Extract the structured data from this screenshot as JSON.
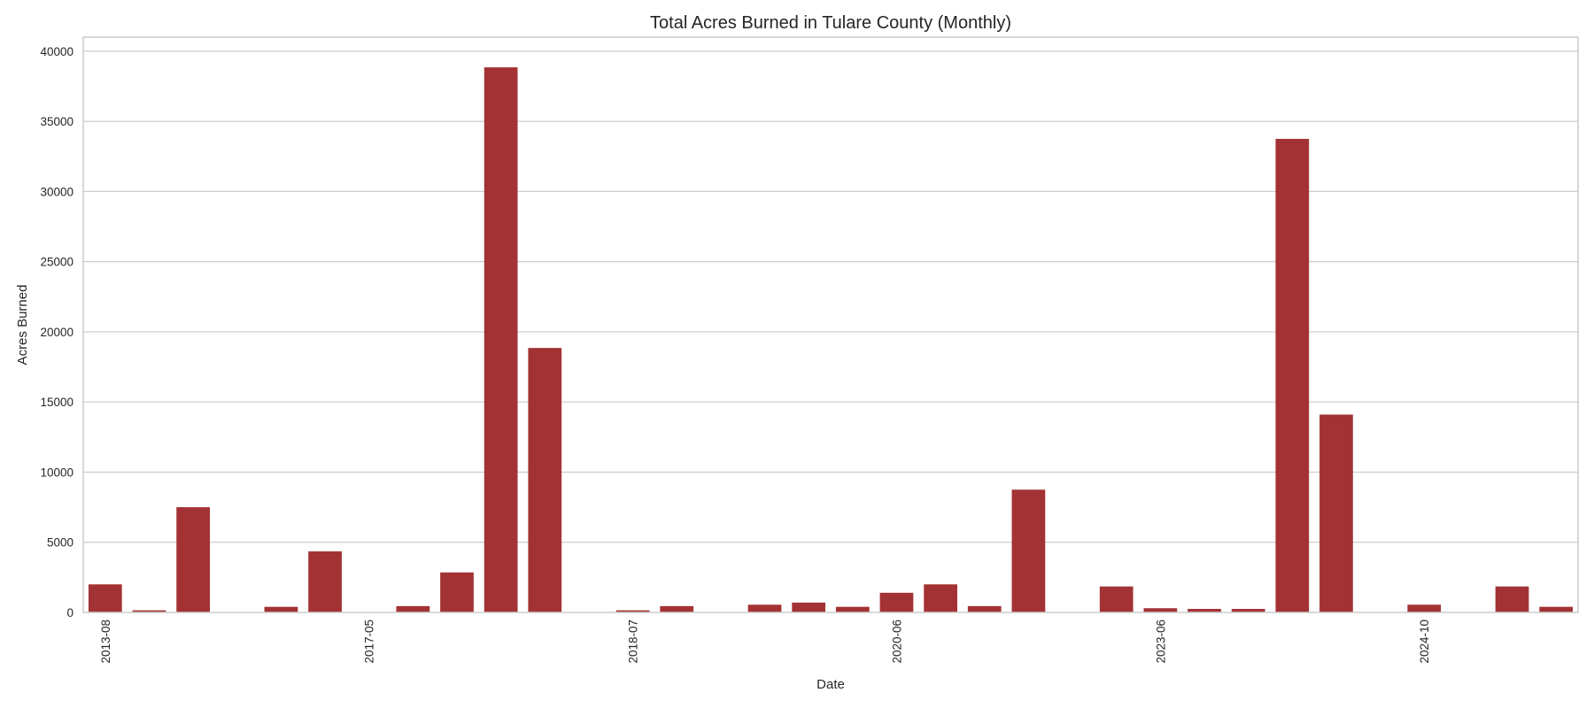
{
  "chart_data": {
    "type": "bar",
    "title": "Total Acres Burned in Tulare County (Monthly)",
    "xlabel": "Date",
    "ylabel": "Acres Burned",
    "ylim": [
      0,
      41000
    ],
    "y_ticks": [
      0,
      5000,
      10000,
      15000,
      20000,
      25000,
      30000,
      35000,
      40000
    ],
    "x_tick_labels": [
      {
        "index": 0,
        "label": "2013-08"
      },
      {
        "index": 6,
        "label": "2017-05"
      },
      {
        "index": 12,
        "label": "2018-07"
      },
      {
        "index": 18,
        "label": "2020-06"
      },
      {
        "index": 24,
        "label": "2023-06"
      },
      {
        "index": 30,
        "label": "2024-10"
      }
    ],
    "values": [
      2000,
      150,
      7500,
      0,
      400,
      4350,
      0,
      450,
      2850,
      38850,
      18850,
      0,
      150,
      450,
      0,
      550,
      700,
      400,
      1400,
      2000,
      450,
      8750,
      0,
      1850,
      300,
      250,
      250,
      33750,
      14100,
      0,
      550,
      0,
      1850,
      400
    ],
    "bar_color": "#a33234",
    "grid": true,
    "grid_axis": "y"
  }
}
